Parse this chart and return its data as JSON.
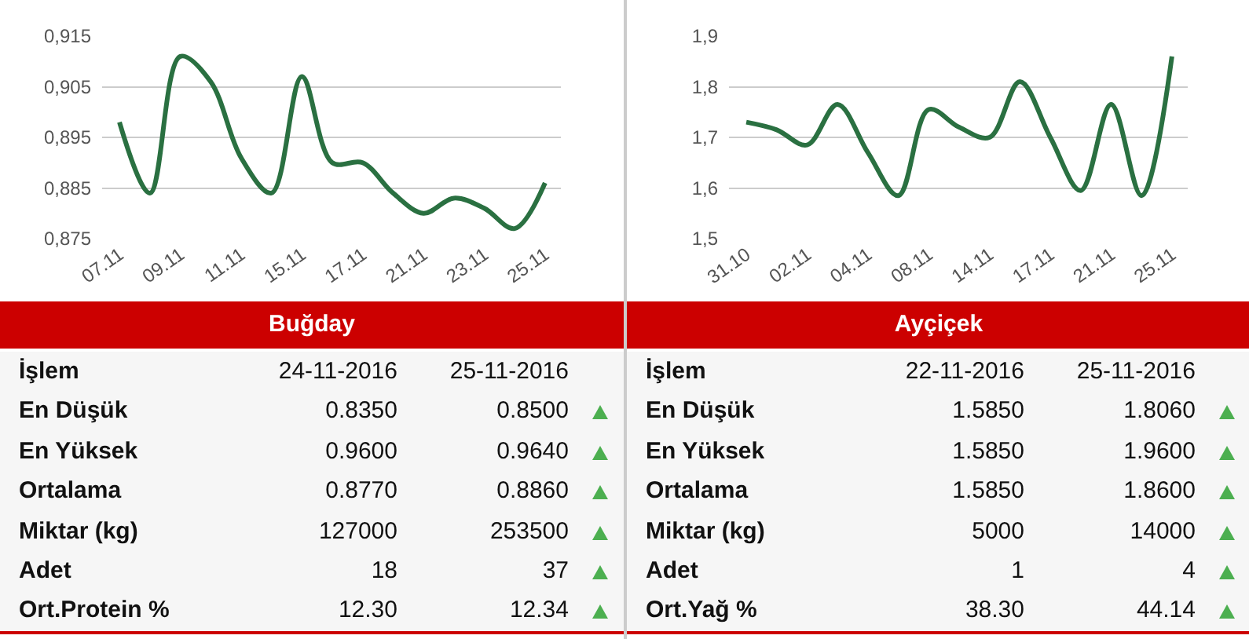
{
  "chart_data": [
    {
      "type": "line",
      "title": "Buğday",
      "categories": [
        "07.11",
        null,
        "09.11",
        null,
        "11.11",
        null,
        "15.11",
        null,
        "17.11",
        null,
        "21.11",
        null,
        "23.11",
        null,
        "25.11"
      ],
      "series": [
        {
          "color": "#2a7041",
          "values": [
            0.898,
            0.884,
            0.911,
            0.906,
            0.891,
            0.884,
            0.907,
            0.89,
            0.89,
            0.884,
            0.88,
            0.883,
            0.881,
            0.877,
            0.886
          ]
        }
      ],
      "ylim": [
        0.875,
        0.915
      ],
      "yticks": [
        {
          "value": 0.875,
          "label": "0,875"
        },
        {
          "value": 0.885,
          "label": "0,885"
        },
        {
          "value": 0.895,
          "label": "0,895"
        },
        {
          "value": 0.905,
          "label": "0,905"
        },
        {
          "value": 0.915,
          "label": "0,915"
        }
      ],
      "grid": "y",
      "annotations": [
        "İşlem",
        "24-11-2016",
        "25-11-2016",
        "En Düşük",
        "0.8350",
        "0.8500",
        "En Yüksek",
        "0.9600",
        "0.9640",
        "Ortalama",
        "0.8770",
        "0.8860",
        "Miktar (kg)",
        "127000",
        "253500",
        "Adet",
        "18",
        "37",
        "Ort.Protein %",
        "12.30",
        "12.34"
      ]
    },
    {
      "type": "line",
      "title": "Ayçiçek",
      "categories": [
        "31.10",
        null,
        "02.11",
        null,
        "04.11",
        null,
        "08.11",
        null,
        "14.11",
        null,
        "17.11",
        null,
        "21.11",
        null,
        "25.11"
      ],
      "series": [
        {
          "color": "#2a7041",
          "values": [
            1.73,
            1.715,
            1.685,
            1.765,
            1.67,
            1.585,
            1.755,
            1.72,
            1.7,
            1.81,
            1.7,
            1.595,
            1.765,
            1.585,
            1.86
          ]
        }
      ],
      "ylim": [
        1.5,
        1.9
      ],
      "yticks": [
        {
          "value": 1.5,
          "label": "1,5"
        },
        {
          "value": 1.6,
          "label": "1,6"
        },
        {
          "value": 1.7,
          "label": "1,7"
        },
        {
          "value": 1.8,
          "label": "1,8"
        },
        {
          "value": 1.9,
          "label": "1,9"
        }
      ],
      "grid": "y",
      "annotations": [
        "İşlem",
        "22-11-2016",
        "25-11-2016",
        "En Düşük",
        "1.5850",
        "1.8060",
        "En Yüksek",
        "1.5850",
        "1.9600",
        "Ortalama",
        "1.5850",
        "1.8600",
        "Miktar (kg)",
        "5000",
        "14000",
        "Adet",
        "1",
        "4",
        "Ort.Yağ %",
        "38.30",
        "44.14"
      ]
    }
  ]
}
